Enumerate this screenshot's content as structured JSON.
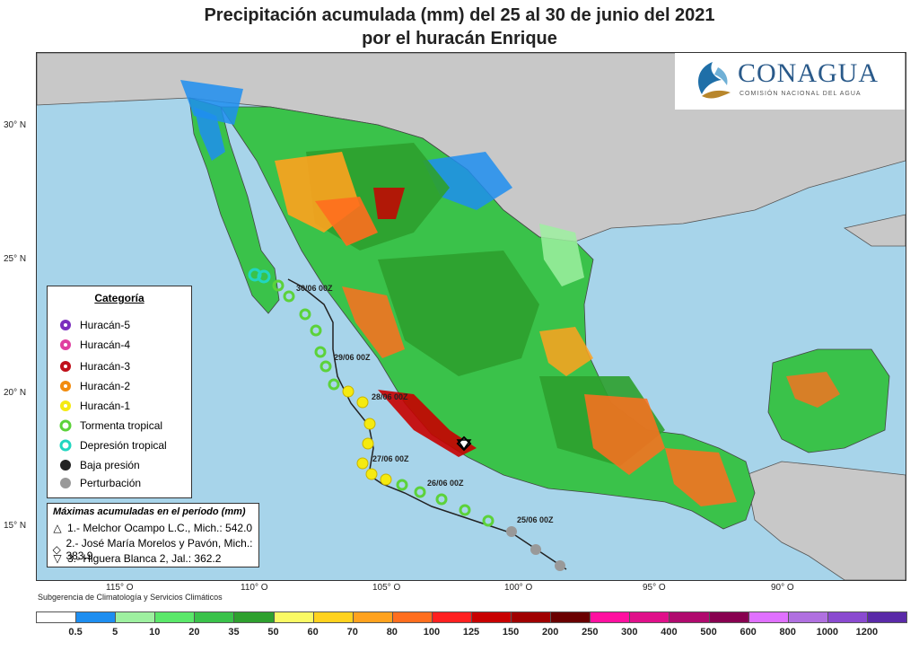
{
  "title": {
    "line1": "Precipitación acumulada (mm) del 25 al 30 de junio del 2021",
    "line2": "por el huracán Enrique"
  },
  "logo": {
    "name": "CONAGUA",
    "subtitle": "COMISIÓN NACIONAL DEL AGUA"
  },
  "axes": {
    "lat_ticks": [
      "30° N",
      "25° N",
      "20° N",
      "15° N"
    ],
    "lon_ticks": [
      "115° O",
      "110° O",
      "105° O",
      "100° O",
      "95° O",
      "90° O"
    ]
  },
  "legend": {
    "title": "Categoría",
    "items": [
      {
        "label": "Huracán-5",
        "icon": "hurricane-5-icon",
        "color": "#7b2fbe"
      },
      {
        "label": "Huracán-4",
        "icon": "hurricane-4-icon",
        "color": "#e040a0"
      },
      {
        "label": "Huracán-3",
        "icon": "hurricane-3-icon",
        "color": "#c0101a"
      },
      {
        "label": "Huracán-2",
        "icon": "hurricane-2-icon",
        "color": "#f28c0f"
      },
      {
        "label": "Huracán-1",
        "icon": "hurricane-1-icon",
        "color": "#f5ea10"
      },
      {
        "label": "Tormenta tropical",
        "icon": "tropical-storm-icon",
        "color": "#5cd23a"
      },
      {
        "label": "Depresión tropical",
        "icon": "tropical-depression-icon",
        "color": "#21d6c0"
      },
      {
        "label": "Baja presión",
        "icon": "low-pressure-icon",
        "color": "#222222"
      },
      {
        "label": "Perturbación",
        "icon": "disturbance-icon",
        "color": "#999999"
      }
    ]
  },
  "maxima": {
    "title": "Máximas acumuladas en el período (mm)",
    "items": [
      {
        "symbol": "△",
        "text": "1.- Melchor Ocampo L.C., Mich.: 542.0"
      },
      {
        "symbol": "◇",
        "text": "2.- José María Morelos y Pavón, Mich.: 383.9"
      },
      {
        "symbol": "▽",
        "text": "3.- Higuera Blanca 2, Jal.: 362.2"
      }
    ]
  },
  "track_labels": [
    "30/06 00Z",
    "29/06 00Z",
    "28/06 00Z",
    "27/06 00Z",
    "26/06 00Z",
    "25/06 00Z"
  ],
  "credit": "Subgerencia de Climatología y Servicios Climáticos",
  "colorbar": {
    "colors": [
      "#ffffff",
      "#1e8ef0",
      "#9ef0a0",
      "#5be86a",
      "#3ac24a",
      "#2ea02e",
      "#fafa64",
      "#ffd21e",
      "#ffa21e",
      "#ff6e1e",
      "#ff2020",
      "#c80000",
      "#a00000",
      "#6a0000",
      "#ff10a0",
      "#e0108a",
      "#b00a6e",
      "#880050",
      "#e070ff",
      "#b070e0",
      "#8a4ad0",
      "#5a2aa8"
    ],
    "labels": [
      "0.5",
      "5",
      "10",
      "20",
      "35",
      "50",
      "60",
      "70",
      "80",
      "100",
      "125",
      "150",
      "200",
      "250",
      "300",
      "400",
      "500",
      "600",
      "800",
      "1000",
      "1200"
    ]
  }
}
